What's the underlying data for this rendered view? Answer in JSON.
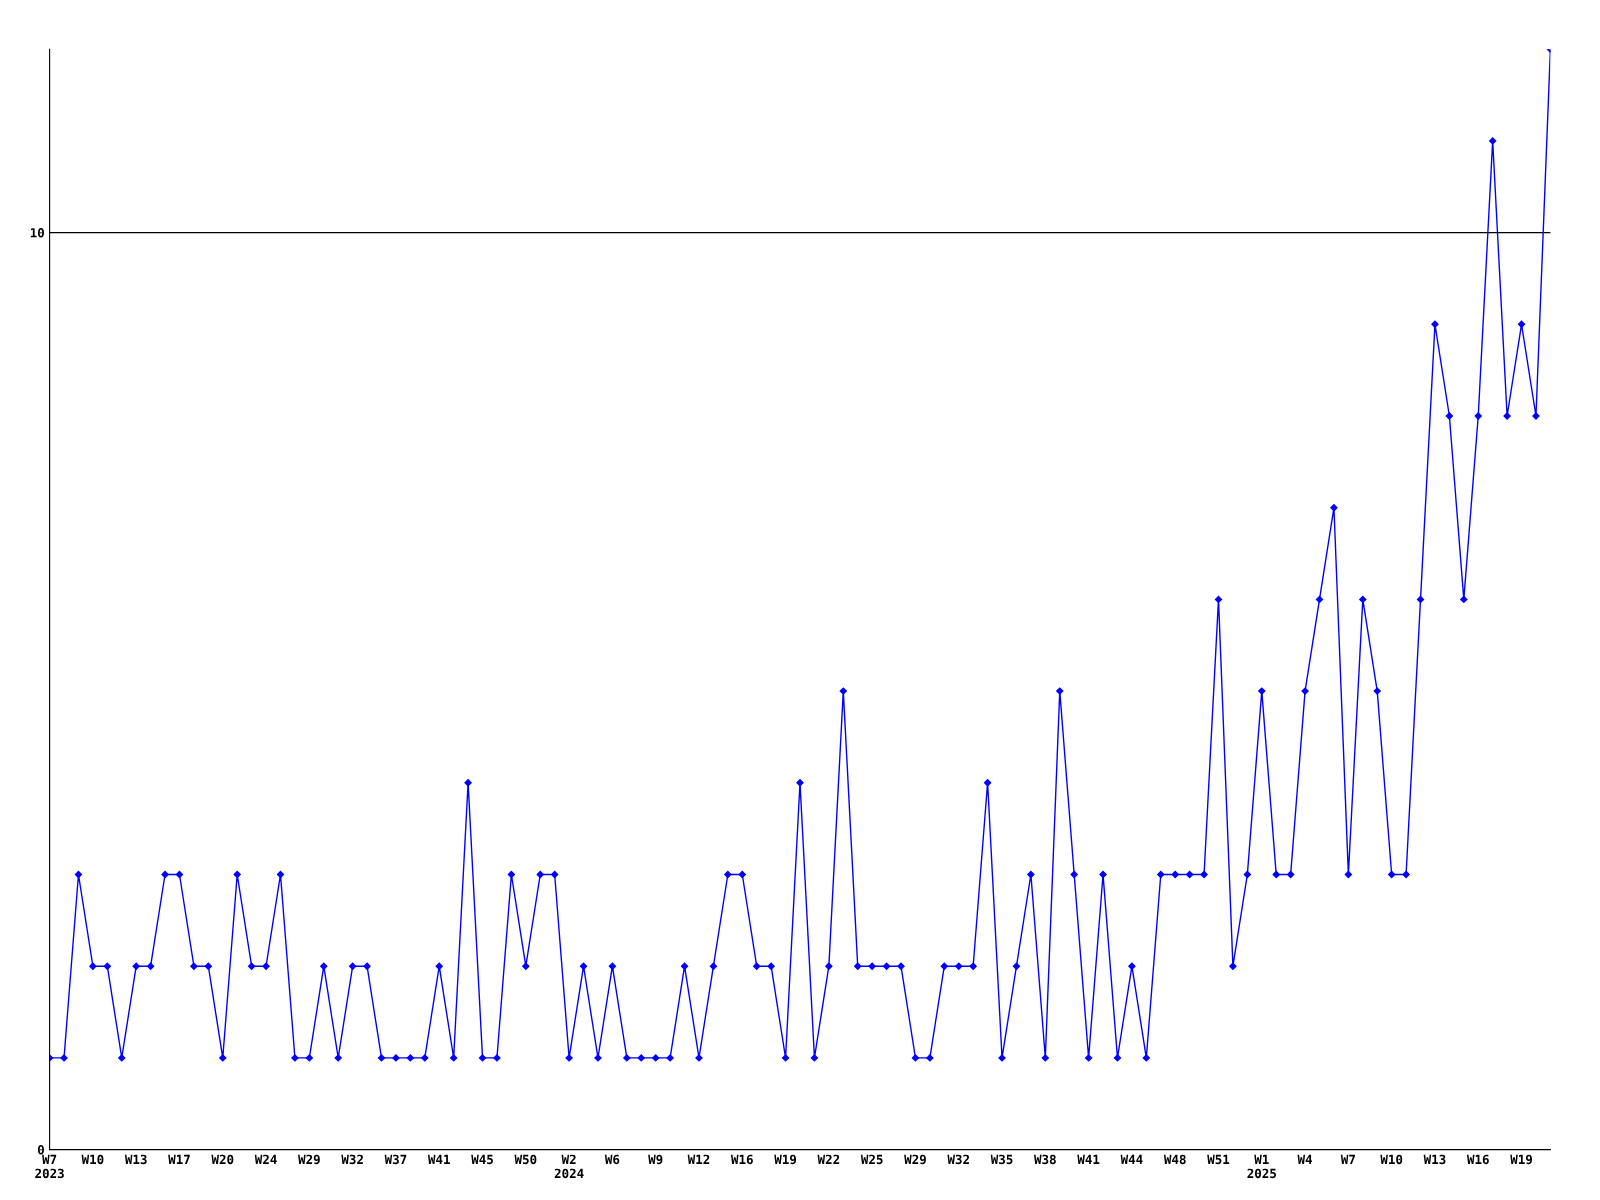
{
  "chart_data": {
    "type": "line",
    "categories": [
      "W7\n2023",
      null,
      null,
      "W10",
      null,
      null,
      "W13",
      null,
      null,
      "W17",
      null,
      null,
      "W20",
      null,
      null,
      "W24",
      null,
      null,
      "W29",
      null,
      null,
      "W32",
      null,
      null,
      "W37",
      null,
      null,
      "W41",
      null,
      null,
      "W45",
      null,
      null,
      "W50",
      null,
      null,
      "W2\n2024",
      null,
      null,
      "W6",
      null,
      null,
      "W9",
      null,
      null,
      "W12",
      null,
      null,
      "W16",
      null,
      null,
      "W19",
      null,
      null,
      "W22",
      null,
      null,
      "W25",
      null,
      null,
      "W29",
      null,
      null,
      "W32",
      null,
      null,
      "W35",
      null,
      null,
      "W38",
      null,
      null,
      "W41",
      null,
      null,
      "W44",
      null,
      null,
      "W48",
      null,
      null,
      "W51",
      null,
      null,
      "W1\n2025",
      null,
      null,
      "W4",
      null,
      null,
      "W7",
      null,
      null,
      "W10",
      null,
      null,
      "W13",
      null,
      null,
      "W16",
      null,
      null,
      "W19",
      null,
      null
    ],
    "series": [
      {
        "color": "#0000ff",
        "values": [
          1,
          1,
          3,
          2,
          2,
          1,
          2,
          2,
          3,
          3,
          2,
          2,
          1,
          3,
          2,
          2,
          3,
          1,
          1,
          2,
          1,
          2,
          2,
          1,
          1,
          1,
          1,
          2,
          1,
          4,
          1,
          1,
          3,
          2,
          3,
          3,
          1,
          2,
          1,
          2,
          1,
          1,
          1,
          1,
          2,
          1,
          2,
          3,
          3,
          2,
          2,
          1,
          4,
          1,
          2,
          5,
          2,
          2,
          2,
          2,
          1,
          1,
          2,
          2,
          2,
          4,
          1,
          2,
          3,
          1,
          5,
          3,
          1,
          3,
          1,
          2,
          1,
          3,
          3,
          3,
          3,
          6,
          2,
          3,
          5,
          3,
          3,
          5,
          6,
          7,
          3,
          6,
          5,
          3,
          3,
          6,
          9,
          8,
          6,
          8,
          11,
          8,
          9,
          8,
          12
        ]
      }
    ],
    "ylim": [
      0,
      12
    ],
    "yticks": [
      0,
      10
    ],
    "grid": "y",
    "marker": "diamond",
    "line_style": "solid",
    "legend": false
  }
}
